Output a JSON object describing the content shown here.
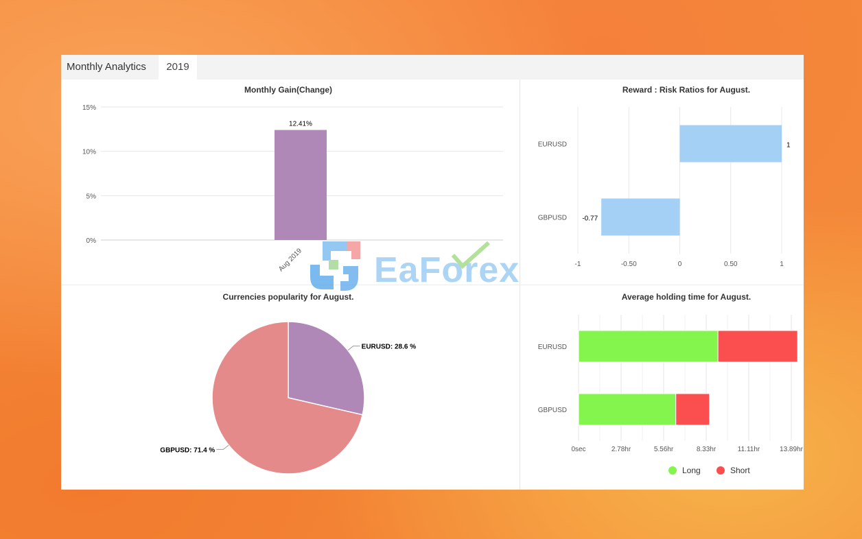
{
  "tabs": {
    "title": "Monthly Analytics",
    "year": "2019"
  },
  "watermark": {
    "text": "EaForex"
  },
  "colors": {
    "purple": "#b088b8",
    "pink": "#e48a8a",
    "lightblue": "#a4d0f5",
    "long": "#84f54c",
    "short": "#fb4f4f"
  },
  "chart_data": [
    {
      "type": "bar",
      "title": "Monthly Gain(Change)",
      "categories": [
        "Aug 2019"
      ],
      "values": [
        12.41
      ],
      "data_labels": [
        "12.41%"
      ],
      "ylim": [
        0,
        15
      ],
      "yticks": [
        "0%",
        "5%",
        "10%",
        "15%"
      ],
      "grid": true
    },
    {
      "type": "bar",
      "orientation": "horizontal",
      "title": "Reward : Risk Ratios for August.",
      "categories": [
        "EURUSD",
        "GBPUSD"
      ],
      "values": [
        1,
        -0.77
      ],
      "data_labels": [
        "1",
        "-0.77"
      ],
      "xlim": [
        -1,
        1
      ],
      "xticks": [
        "-1",
        "-0.50",
        "0",
        "0.50",
        "1"
      ],
      "grid": true
    },
    {
      "type": "pie",
      "title": "Currencies popularity for August.",
      "labels": [
        "EURUSD",
        "GBPUSD"
      ],
      "values": [
        28.6,
        71.4
      ],
      "data_labels": [
        "EURUSD: 28.6 %",
        "GBPUSD: 71.4 %"
      ]
    },
    {
      "type": "bar",
      "orientation": "horizontal",
      "stacked": true,
      "title": "Average holding time for August.",
      "categories": [
        "EURUSD",
        "GBPUSD"
      ],
      "series": [
        {
          "name": "Long",
          "values": [
            9.1,
            6.35
          ]
        },
        {
          "name": "Short",
          "values": [
            5.2,
            2.2
          ]
        }
      ],
      "xlim": [
        0,
        13.89
      ],
      "xticks": [
        "0sec",
        "2.78hr",
        "5.56hr",
        "8.33hr",
        "11.11hr",
        "13.89hr"
      ],
      "legend": "bottom",
      "grid": true
    }
  ]
}
